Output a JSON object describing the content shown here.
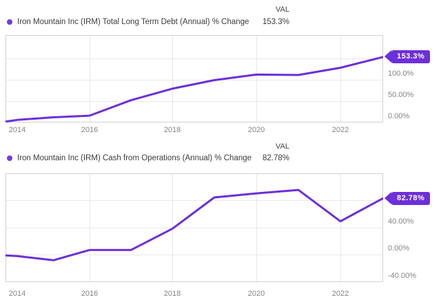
{
  "page": {
    "background": "#FFFFFF"
  },
  "colors": {
    "line": "#6C2FD9",
    "badge_bg": "#6C2FD9",
    "badge_text": "#FFFFFF",
    "legend_dot": "#7A3BD6",
    "title_text": "#3C3C3C",
    "tick_text": "#848484",
    "gridline": "#E8E8E8",
    "plot_border": "#D0D0D0"
  },
  "chart_data": [
    {
      "type": "line",
      "title": "Iron Mountain Inc (IRM) Total Long Term Debt (Annual) % Change",
      "val_header": "VAL",
      "val": "153.3%",
      "badge_label": "153.3%",
      "x": [
        2013.71,
        2014,
        2015,
        2016,
        2017,
        2018,
        2019,
        2020,
        2021,
        2022,
        2023
      ],
      "y": [
        2,
        6,
        12,
        16,
        52,
        79,
        99,
        112,
        111,
        128,
        153.3
      ],
      "x_tick_labels": [
        "2014",
        "2016",
        "2018",
        "2020",
        "2022"
      ],
      "x_tick_years": [
        2014,
        2016,
        2018,
        2020,
        2022
      ],
      "x_gridline_years": [
        2016,
        2018,
        2020,
        2022
      ],
      "y_tick_labels": [
        "100.0%",
        "50.00%",
        "0.00%"
      ],
      "y_tick_values": [
        100,
        50,
        0
      ],
      "y_gridline_values": [
        150,
        100,
        50
      ],
      "ylim": [
        0,
        204.4
      ],
      "xlim": [
        2013.71,
        2023
      ],
      "grid": true,
      "legend_position": "top-left",
      "value_axis_side": "right"
    },
    {
      "type": "line",
      "title": "Iron Mountain Inc (IRM) Cash from Operations (Annual) % Change",
      "val_header": "VAL",
      "val": "82.78%",
      "badge_label": "82.78%",
      "x": [
        2013.71,
        2014,
        2015,
        2016,
        2017,
        2018,
        2019,
        2020,
        2021,
        2022,
        2023
      ],
      "y": [
        -1,
        -2,
        -8,
        7,
        7,
        38,
        84,
        90,
        95,
        49,
        82.78
      ],
      "x_tick_labels": [
        "2014",
        "2016",
        "2018",
        "2020",
        "2022"
      ],
      "x_tick_years": [
        2014,
        2016,
        2018,
        2020,
        2022
      ],
      "x_gridline_years": [
        2016,
        2018,
        2020,
        2022
      ],
      "y_tick_labels": [
        "40.00%",
        "0.00%",
        "-40.00%"
      ],
      "y_tick_values": [
        40,
        0,
        -40
      ],
      "y_gridline_values": [
        80,
        40,
        0
      ],
      "ylim": [
        -40,
        119.3
      ],
      "xlim": [
        2013.71,
        2023
      ],
      "grid": true,
      "legend_position": "top-left",
      "value_axis_side": "right"
    }
  ]
}
